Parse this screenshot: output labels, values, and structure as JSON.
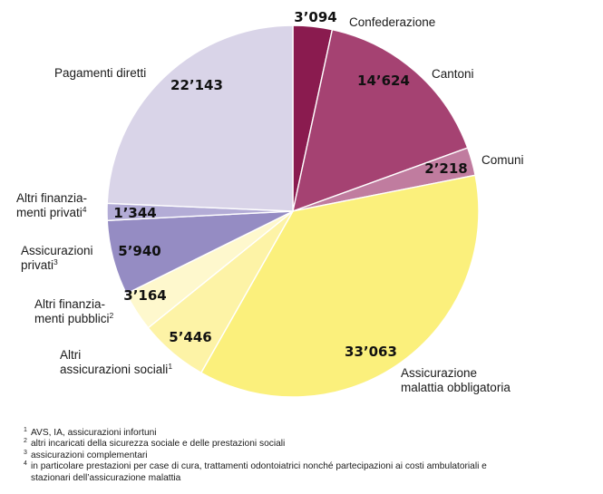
{
  "chart_data": {
    "type": "pie",
    "title": "",
    "start": "top",
    "direction": "clockwise",
    "slices": [
      {
        "value": 3094,
        "value_label": "3’094",
        "label_lines": [
          "Confederazione"
        ],
        "footnote_ref": "",
        "color": "#8a1b4f"
      },
      {
        "value": 14624,
        "value_label": "14’624",
        "label_lines": [
          "Cantoni"
        ],
        "footnote_ref": "",
        "color": "#a54272"
      },
      {
        "value": 2218,
        "value_label": "2’218",
        "label_lines": [
          "Comuni"
        ],
        "footnote_ref": "",
        "color": "#c07c9f"
      },
      {
        "value": 33063,
        "value_label": "33’063",
        "label_lines": [
          "Assicurazione",
          "malattia obbligatoria"
        ],
        "footnote_ref": "",
        "color": "#fbf07c"
      },
      {
        "value": 5446,
        "value_label": "5’446",
        "label_lines": [
          "Altri",
          "assicurazioni sociali"
        ],
        "footnote_ref": "1",
        "color": "#fdf3a6"
      },
      {
        "value": 3164,
        "value_label": "3’164",
        "label_lines": [
          "Altri finanzia-",
          "menti pubblici"
        ],
        "footnote_ref": "2",
        "color": "#fef8cd"
      },
      {
        "value": 5940,
        "value_label": "5’940",
        "label_lines": [
          "Assicurazioni",
          "privati"
        ],
        "footnote_ref": "3",
        "color": "#958cc3"
      },
      {
        "value": 1344,
        "value_label": "1’344",
        "label_lines": [
          "Altri finanzia-",
          "menti privati"
        ],
        "footnote_ref": "4",
        "color": "#b3acd6"
      },
      {
        "value": 22143,
        "value_label": "22’143",
        "label_lines": [
          "Pagamenti diretti"
        ],
        "footnote_ref": "",
        "color": "#d9d4e8"
      }
    ]
  },
  "footnotes": [
    {
      "mark": "1",
      "lines": [
        "AVS, IA, assicurazioni infortuni"
      ]
    },
    {
      "mark": "2",
      "lines": [
        "altri incaricati della sicurezza sociale e delle prestazioni sociali"
      ]
    },
    {
      "mark": "3",
      "lines": [
        "assicurazioni complementari"
      ]
    },
    {
      "mark": "4",
      "lines": [
        "in particolare prestazioni per case di cura, trattamenti odontoiatrici nonché partecipazioni ai costi ambulatoriali e",
        "stazionari  dell’assicurazione malattia"
      ]
    }
  ]
}
